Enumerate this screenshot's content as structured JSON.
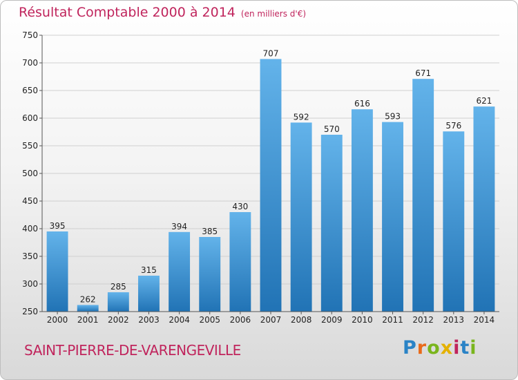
{
  "title": "Résultat Comptable 2000 à 2014",
  "subtitle": "(en milliers d'€)",
  "commune": "SAINT-PIERRE-DE-VARENGEVILLE",
  "logo": {
    "letters": [
      "P",
      "r",
      "o",
      "x",
      "i",
      "t",
      "i"
    ]
  },
  "colors": {
    "bar_light": "#63b3ea",
    "bar_dark": "#2173b5",
    "title": "#c0245c"
  },
  "chart_data": {
    "type": "bar",
    "categories": [
      "2000",
      "2001",
      "2002",
      "2003",
      "2004",
      "2005",
      "2006",
      "2007",
      "2008",
      "2009",
      "2010",
      "2011",
      "2012",
      "2013",
      "2014"
    ],
    "values": [
      395,
      262,
      285,
      315,
      394,
      385,
      430,
      707,
      592,
      570,
      616,
      593,
      671,
      576,
      621
    ],
    "title": "Résultat Comptable 2000 à 2014",
    "xlabel": "",
    "ylabel": "",
    "ylim": [
      250,
      750
    ],
    "yticks": [
      250,
      300,
      350,
      400,
      450,
      500,
      550,
      600,
      650,
      700,
      750
    ],
    "grid": true,
    "legend": "none"
  }
}
